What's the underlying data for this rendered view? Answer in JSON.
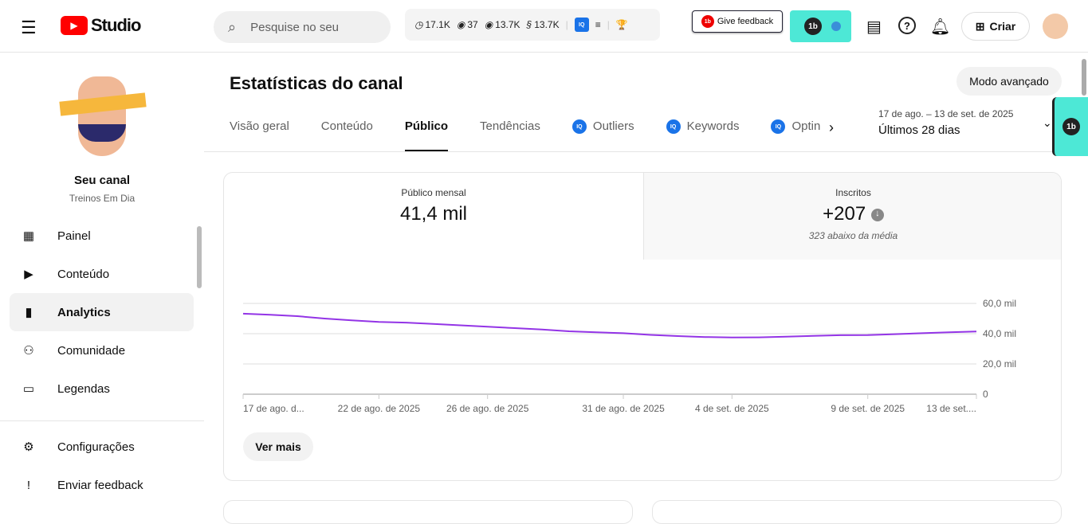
{
  "header": {
    "logo_text": "Studio",
    "search_placeholder": "Pesquise no seu",
    "stats": [
      "17.1K",
      "37",
      "13.7K",
      "13.7K"
    ],
    "feedback_label": "Give feedback",
    "create_label": "Criar"
  },
  "sidebar": {
    "channel_name": "Seu canal",
    "channel_handle": "Treinos Em Dia",
    "items": [
      {
        "label": "Painel",
        "icon": "dashboard-icon"
      },
      {
        "label": "Conteúdo",
        "icon": "content-icon"
      },
      {
        "label": "Analytics",
        "icon": "analytics-icon",
        "active": true
      },
      {
        "label": "Comunidade",
        "icon": "community-icon"
      },
      {
        "label": "Legendas",
        "icon": "subtitles-icon"
      }
    ],
    "bottom": [
      {
        "label": "Configurações",
        "icon": "gear-icon"
      },
      {
        "label": "Enviar feedback",
        "icon": "feedback-icon"
      }
    ]
  },
  "main": {
    "title": "Estatísticas do canal",
    "advanced_mode": "Modo avançado",
    "tabs": [
      "Visão geral",
      "Conteúdo",
      "Público",
      "Tendências",
      "Outliers",
      "Keywords",
      "Optin"
    ],
    "active_tab": "Público",
    "date_range": "17 de ago. – 13 de set. de 2025",
    "date_label": "Últimos 28 dias",
    "metrics": [
      {
        "label": "Público mensal",
        "value": "41,4 mil"
      },
      {
        "label": "Inscritos",
        "value": "+207",
        "note": "323 abaixo da média"
      }
    ],
    "see_more": "Ver mais"
  },
  "chart_data": {
    "type": "line",
    "color": "#9334e6",
    "x_ticks": [
      "17 de ago. d...",
      "22 de ago. de 2025",
      "26 de ago. de 2025",
      "31 de ago. de 2025",
      "4 de set. de 2025",
      "9 de set. de 2025",
      "13 de set...."
    ],
    "y_ticks": [
      "0",
      "20,0 mil",
      "40,0 mil",
      "60,0 mil"
    ],
    "ylim": [
      0,
      60000
    ],
    "grid": true,
    "x": [
      "2025-08-17",
      "2025-08-18",
      "2025-08-19",
      "2025-08-20",
      "2025-08-21",
      "2025-08-22",
      "2025-08-23",
      "2025-08-24",
      "2025-08-25",
      "2025-08-26",
      "2025-08-27",
      "2025-08-28",
      "2025-08-29",
      "2025-08-30",
      "2025-08-31",
      "2025-09-01",
      "2025-09-02",
      "2025-09-03",
      "2025-09-04",
      "2025-09-05",
      "2025-09-06",
      "2025-09-07",
      "2025-09-08",
      "2025-09-09",
      "2025-09-10",
      "2025-09-11",
      "2025-09-12",
      "2025-09-13"
    ],
    "values": [
      53200,
      52500,
      51600,
      50000,
      48800,
      47800,
      47300,
      46400,
      45500,
      44600,
      43700,
      42800,
      41600,
      40900,
      40300,
      39200,
      38400,
      37800,
      37500,
      37600,
      38000,
      38600,
      39000,
      39100,
      39700,
      40300,
      40900,
      41400
    ]
  }
}
